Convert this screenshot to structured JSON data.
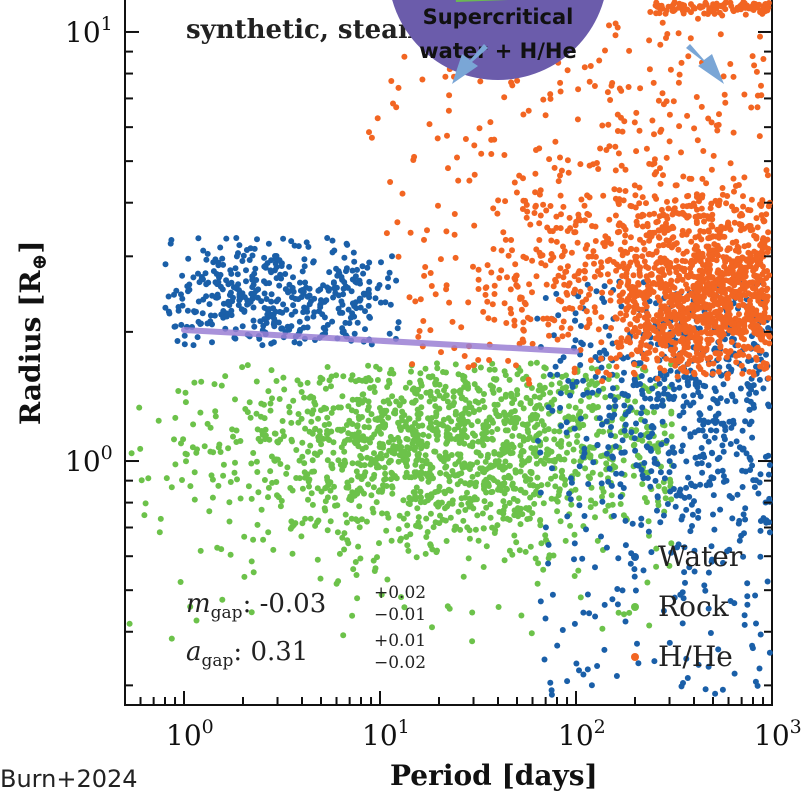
{
  "credit": "Burn+2024",
  "bubble": {
    "line1": "Supercritical",
    "line2": "water + H/He",
    "fill": "#6b5cab",
    "arrow_color": "#7aa6d6"
  },
  "chart_data": {
    "type": "scatter",
    "title": "synthetic, steam",
    "xlabel": "Period [days]",
    "ylabel_main": "Radius [R",
    "ylabel_sub": "⊕",
    "ylabel_end": "]",
    "xscale": "log",
    "yscale": "log",
    "xlim": [
      0.5,
      1000
    ],
    "ylim": [
      0.27,
      12
    ],
    "x_ticks": [
      {
        "base": "10",
        "exp": "0",
        "value": 1
      },
      {
        "base": "10",
        "exp": "1",
        "value": 10
      },
      {
        "base": "10",
        "exp": "2",
        "value": 100
      },
      {
        "base": "10",
        "exp": "3",
        "value": 1000
      }
    ],
    "y_ticks": [
      {
        "base": "10",
        "exp": "0",
        "value": 1
      },
      {
        "base": "10",
        "exp": "1",
        "value": 10
      }
    ],
    "legend_position": "bottom-right",
    "series": [
      {
        "name": "Water",
        "color": "#1a5fa8"
      },
      {
        "name": "Rock",
        "color": "#6cc24a"
      },
      {
        "name": "H/He",
        "color": "#f26522"
      }
    ],
    "gap_line": {
      "x": [
        1,
        100
      ],
      "y": [
        2.02,
        1.8
      ],
      "color": "#9b7fd4"
    },
    "stats": [
      {
        "sym": "m",
        "sub": "gap",
        "value": "-0.03",
        "sup": "+0.02",
        "low": "−0.01"
      },
      {
        "sym": "a",
        "sub": "gap",
        "value": "0.31",
        "sup": "+0.01",
        "low": "−0.02"
      }
    ],
    "clusters": [
      {
        "series": "Rock",
        "count": 1600,
        "logx": [
          -0.3,
          2.5
        ],
        "logy": [
          -0.42,
          0.23
        ],
        "center": [
          1.4,
          0.04
        ],
        "spread": [
          0.62,
          0.12
        ]
      },
      {
        "series": "Water",
        "count": 420,
        "logx": [
          -0.1,
          1.1
        ],
        "logy": [
          0.27,
          0.52
        ],
        "center": [
          0.45,
          0.38
        ],
        "spread": [
          0.35,
          0.07
        ]
      },
      {
        "series": "Water",
        "count": 700,
        "logx": [
          1.8,
          3.0
        ],
        "logy": [
          -0.55,
          0.42
        ],
        "center": [
          2.6,
          0.15
        ],
        "spread": [
          0.35,
          0.22
        ]
      },
      {
        "series": "H/He",
        "count": 650,
        "logx": [
          1.0,
          3.0
        ],
        "logy": [
          0.18,
          0.72
        ],
        "center": [
          2.3,
          0.45
        ],
        "spread": [
          0.5,
          0.15
        ]
      },
      {
        "series": "H/He",
        "count": 900,
        "logx": [
          2.2,
          3.0
        ],
        "logy": [
          0.2,
          0.62
        ],
        "center": [
          2.75,
          0.38
        ],
        "spread": [
          0.25,
          0.1
        ]
      },
      {
        "series": "H/He",
        "count": 160,
        "logx": [
          0.9,
          3.0
        ],
        "logy": [
          0.72,
          1.06
        ],
        "center": [
          2.2,
          0.85
        ],
        "spread": [
          0.6,
          0.12
        ]
      },
      {
        "series": "H/He",
        "count": 140,
        "logx": [
          2.4,
          3.0
        ],
        "logy": [
          1.04,
          1.08
        ],
        "center": [
          2.75,
          1.06
        ],
        "spread": [
          0.25,
          0.01
        ]
      }
    ]
  }
}
